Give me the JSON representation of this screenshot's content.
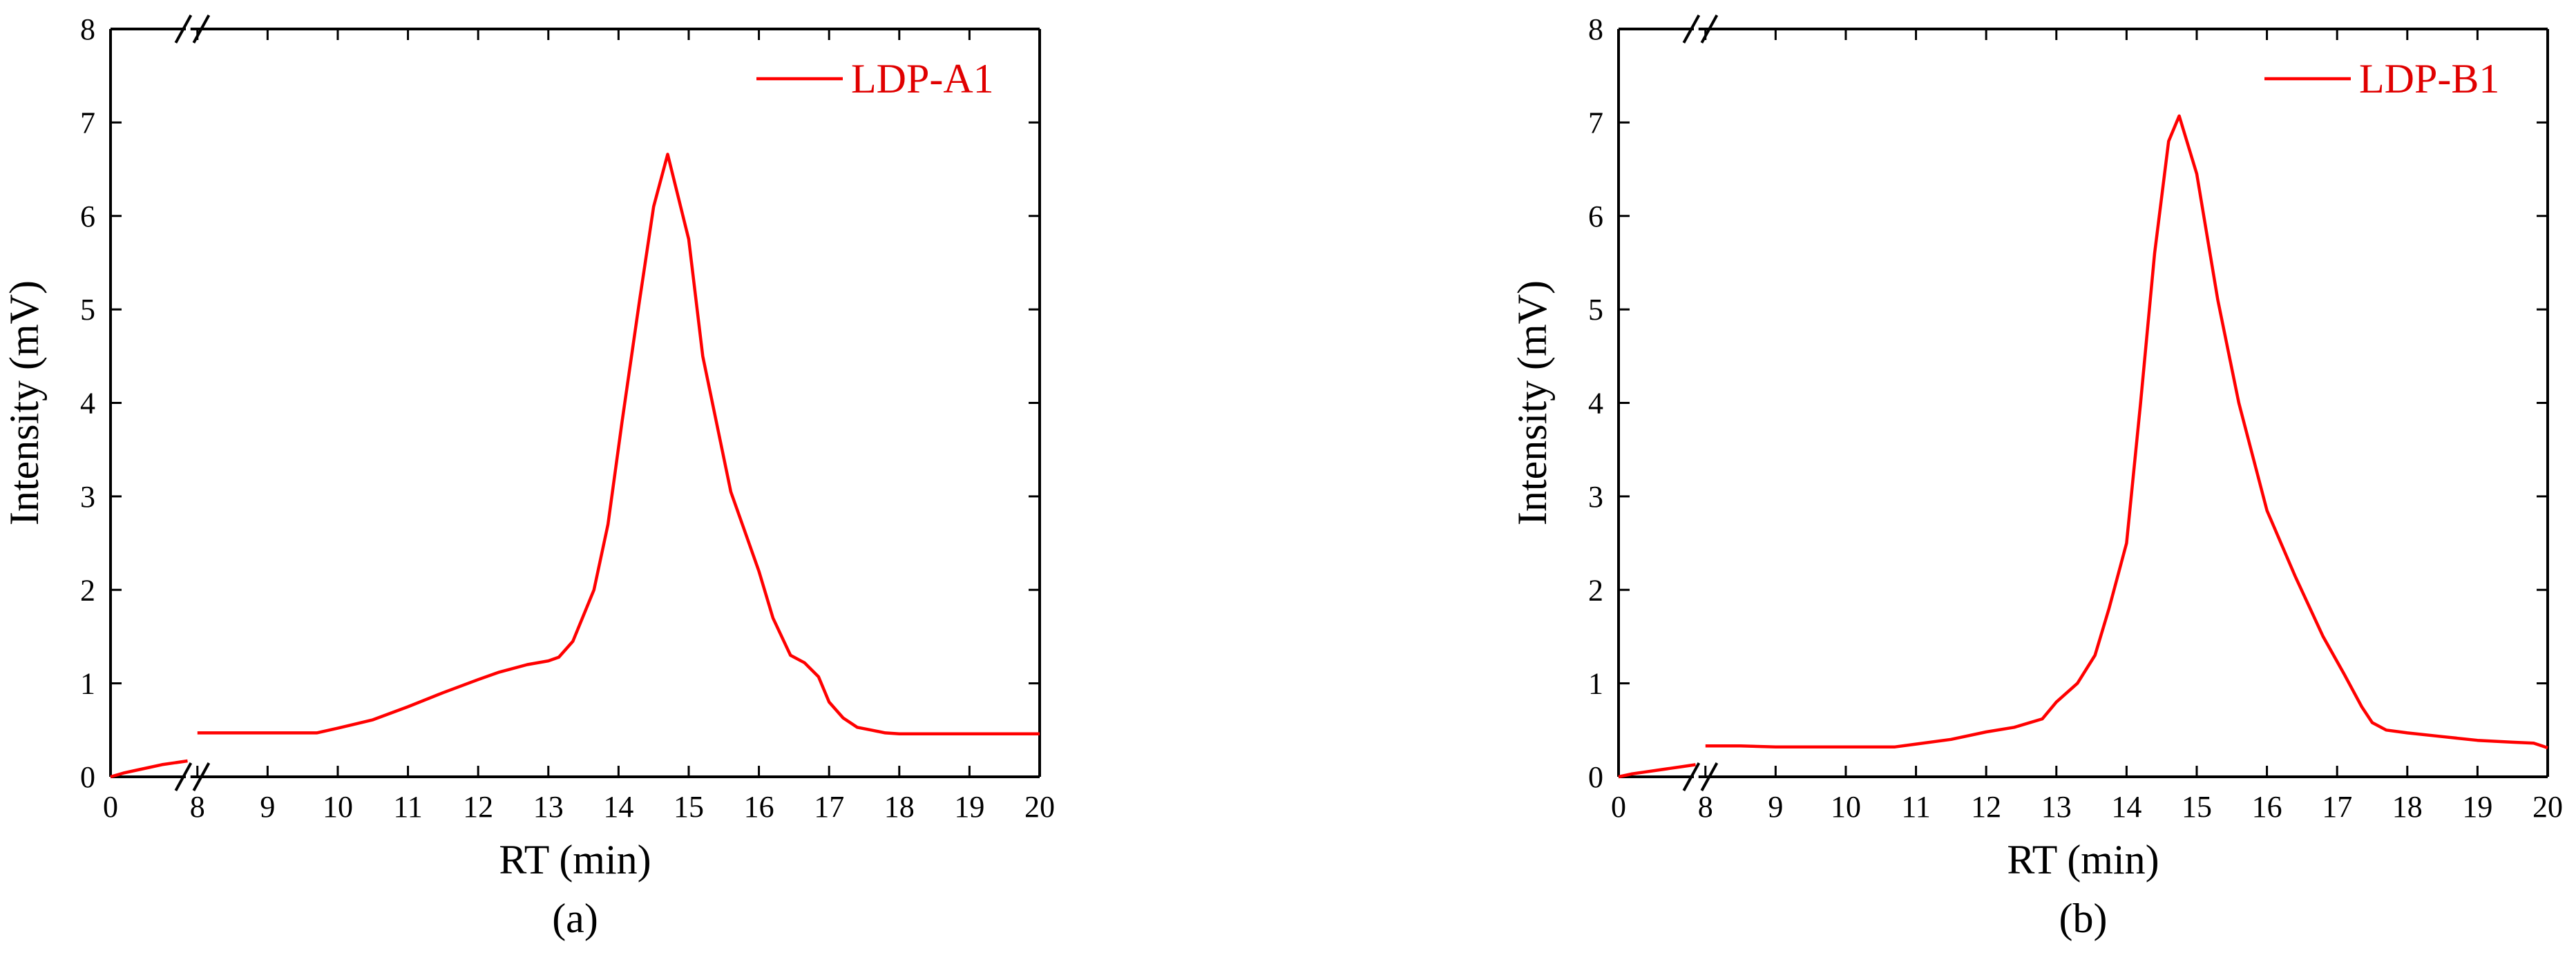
{
  "colors": {
    "series": "#ff0000",
    "axis": "#000000",
    "legend_text": "#e00000"
  },
  "chart_data": [
    {
      "type": "line",
      "panel_label": "(a)",
      "xlabel": "RT (min)",
      "ylabel": "Intensity (mV)",
      "axis_break": "between 0 and 8 on x axis",
      "x_ticks": [
        "0",
        "8",
        "9",
        "10",
        "11",
        "12",
        "13",
        "14",
        "15",
        "16",
        "17",
        "18",
        "19",
        "20"
      ],
      "y_ticks": [
        "0",
        "1",
        "2",
        "3",
        "4",
        "5",
        "6",
        "7",
        "8"
      ],
      "ylim": [
        0,
        8
      ],
      "grid": false,
      "legend_position": "top-right",
      "series": [
        {
          "name": "LDP-A1",
          "segments": [
            [
              [
                0,
                0
              ],
              [
                0.8,
                0.04
              ],
              [
                1.6,
                0.07
              ],
              [
                2.4,
                0.1
              ],
              [
                3.2,
                0.13
              ],
              [
                4.0,
                0.15
              ],
              [
                4.8,
                0.17
              ]
            ],
            [
              [
                8.0,
                0.47
              ],
              [
                8.5,
                0.47
              ],
              [
                9.0,
                0.47
              ],
              [
                9.5,
                0.47
              ],
              [
                9.7,
                0.47
              ],
              [
                10.0,
                0.52
              ],
              [
                10.5,
                0.61
              ],
              [
                11.0,
                0.75
              ],
              [
                11.5,
                0.9
              ],
              [
                12.0,
                1.04
              ],
              [
                12.3,
                1.12
              ],
              [
                12.7,
                1.2
              ],
              [
                13.0,
                1.24
              ],
              [
                13.15,
                1.28
              ],
              [
                13.35,
                1.45
              ],
              [
                13.65,
                2.0
              ],
              [
                13.85,
                2.7
              ],
              [
                14.05,
                3.8
              ],
              [
                14.3,
                5.1
              ],
              [
                14.5,
                6.1
              ],
              [
                14.7,
                6.66
              ],
              [
                15.0,
                5.75
              ],
              [
                15.2,
                4.5
              ],
              [
                15.6,
                3.05
              ],
              [
                16.0,
                2.2
              ],
              [
                16.2,
                1.7
              ],
              [
                16.45,
                1.3
              ],
              [
                16.65,
                1.22
              ],
              [
                16.85,
                1.07
              ],
              [
                17.0,
                0.8
              ],
              [
                17.2,
                0.63
              ],
              [
                17.4,
                0.53
              ],
              [
                17.6,
                0.5
              ],
              [
                17.8,
                0.47
              ],
              [
                18.0,
                0.46
              ],
              [
                19.0,
                0.46
              ],
              [
                20.0,
                0.46
              ]
            ]
          ]
        }
      ]
    },
    {
      "type": "line",
      "panel_label": "(b)",
      "xlabel": "RT (min)",
      "ylabel": "Intensity (mV)",
      "axis_break": "between 0 and 8 on x axis",
      "x_ticks": [
        "0",
        "8",
        "9",
        "10",
        "11",
        "12",
        "13",
        "14",
        "15",
        "16",
        "17",
        "18",
        "19",
        "20"
      ],
      "y_ticks": [
        "0",
        "1",
        "2",
        "3",
        "4",
        "5",
        "6",
        "7",
        "8"
      ],
      "ylim": [
        0,
        8
      ],
      "grid": false,
      "legend_position": "top-right",
      "series": [
        {
          "name": "LDP-B1",
          "segments": [
            [
              [
                0,
                0
              ],
              [
                0.8,
                0.03
              ],
              [
                1.6,
                0.05
              ],
              [
                2.4,
                0.07
              ],
              [
                3.2,
                0.09
              ],
              [
                4.0,
                0.11
              ],
              [
                4.8,
                0.13
              ]
            ],
            [
              [
                8.0,
                0.33
              ],
              [
                8.5,
                0.33
              ],
              [
                9.0,
                0.32
              ],
              [
                10.0,
                0.32
              ],
              [
                10.7,
                0.32
              ],
              [
                11.0,
                0.35
              ],
              [
                11.5,
                0.4
              ],
              [
                12.0,
                0.48
              ],
              [
                12.4,
                0.53
              ],
              [
                12.8,
                0.62
              ],
              [
                13.0,
                0.8
              ],
              [
                13.3,
                1.0
              ],
              [
                13.55,
                1.3
              ],
              [
                13.75,
                1.8
              ],
              [
                14.0,
                2.5
              ],
              [
                14.2,
                4.0
              ],
              [
                14.4,
                5.6
              ],
              [
                14.6,
                6.8
              ],
              [
                14.75,
                7.07
              ],
              [
                15.0,
                6.45
              ],
              [
                15.3,
                5.1
              ],
              [
                15.6,
                4.0
              ],
              [
                16.0,
                2.85
              ],
              [
                16.4,
                2.15
              ],
              [
                16.8,
                1.5
              ],
              [
                17.1,
                1.1
              ],
              [
                17.35,
                0.75
              ],
              [
                17.5,
                0.58
              ],
              [
                17.7,
                0.5
              ],
              [
                18.0,
                0.47
              ],
              [
                18.5,
                0.43
              ],
              [
                19.0,
                0.39
              ],
              [
                19.5,
                0.37
              ],
              [
                19.8,
                0.36
              ],
              [
                20.0,
                0.31
              ]
            ]
          ]
        }
      ]
    }
  ]
}
